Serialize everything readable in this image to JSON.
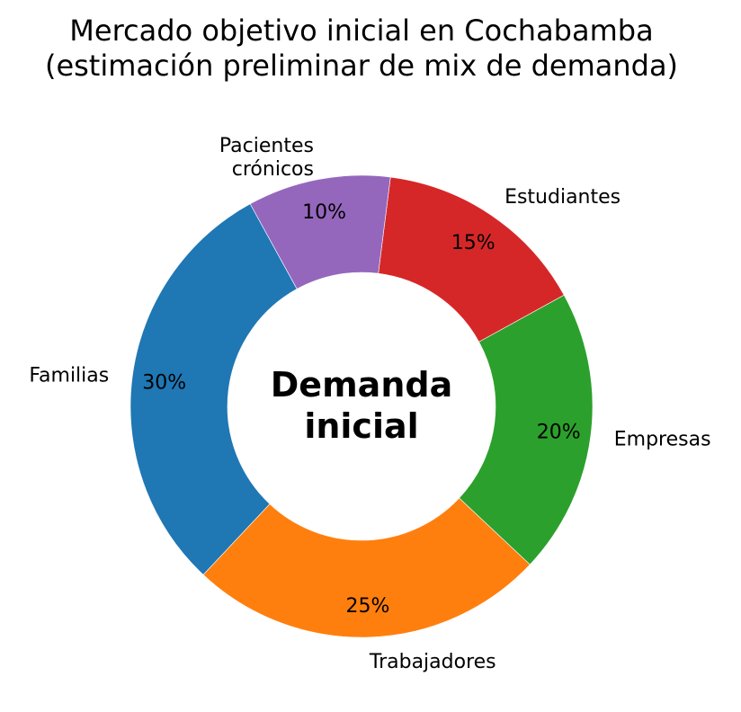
{
  "chart_data": {
    "type": "pie",
    "donut": true,
    "title_lines": [
      "Mercado objetivo inicial en Cochabamba",
      "(estimación preliminar de mix de demanda)"
    ],
    "center_label_lines": [
      "Demanda",
      "inicial"
    ],
    "start_angle_deg": 118.8,
    "direction": "counterclockwise",
    "slices": [
      {
        "label_lines": [
          "Familias"
        ],
        "value": 30,
        "pct_label": "30%",
        "color": "#1f77b4"
      },
      {
        "label_lines": [
          "Trabajadores"
        ],
        "value": 25,
        "pct_label": "25%",
        "color": "#ff7f0e"
      },
      {
        "label_lines": [
          "Empresas"
        ],
        "value": 20,
        "pct_label": "20%",
        "color": "#2ca02c"
      },
      {
        "label_lines": [
          "Estudiantes"
        ],
        "value": 15,
        "pct_label": "15%",
        "color": "#d62728"
      },
      {
        "label_lines": [
          "Pacientes",
          "crónicos"
        ],
        "value": 10,
        "pct_label": "10%",
        "color": "#9467bd"
      }
    ]
  }
}
